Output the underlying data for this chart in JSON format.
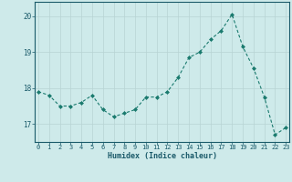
{
  "x": [
    0,
    1,
    2,
    3,
    4,
    5,
    6,
    7,
    8,
    9,
    10,
    11,
    12,
    13,
    14,
    15,
    16,
    17,
    18,
    19,
    20,
    21,
    22,
    23
  ],
  "y": [
    17.9,
    17.8,
    17.5,
    17.5,
    17.6,
    17.8,
    17.4,
    17.2,
    17.3,
    17.4,
    17.75,
    17.75,
    17.9,
    18.3,
    18.85,
    19.0,
    19.35,
    19.6,
    20.05,
    19.15,
    18.55,
    17.75,
    16.7,
    16.9
  ],
  "xlabel": "Humidex (Indice chaleur)",
  "ylim": [
    16.5,
    20.4
  ],
  "yticks": [
    17,
    18,
    19,
    20
  ],
  "xticks": [
    0,
    1,
    2,
    3,
    4,
    5,
    6,
    7,
    8,
    9,
    10,
    11,
    12,
    13,
    14,
    15,
    16,
    17,
    18,
    19,
    20,
    21,
    22,
    23
  ],
  "line_color": "#1a7a6e",
  "marker_color": "#1a7a6e",
  "bg_color": "#ceeaea",
  "grid_color": "#b8d4d4",
  "label_color": "#1a5a6a",
  "tick_color": "#1a5a6a"
}
